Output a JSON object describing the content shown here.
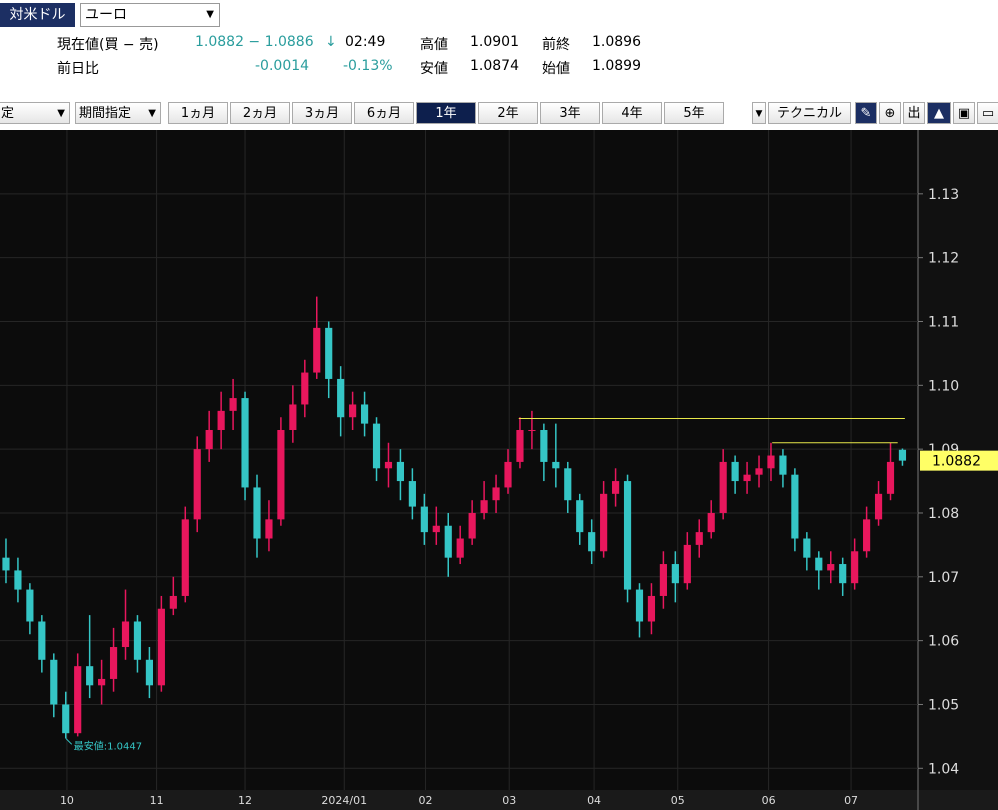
{
  "header": {
    "pair_button": "対米ドル",
    "currency_select": "ユーロ",
    "quote": {
      "label": "現在値(買 − 売)",
      "value": "1.0882 − 1.0886",
      "arrow": "↓",
      "time": "02:49",
      "high_label": "高値",
      "high": "1.0901",
      "prev_close_label": "前終",
      "prev_close": "1.0896",
      "change_label": "前日比",
      "change": "-0.0014",
      "change_pct": "-0.13%",
      "low_label": "安値",
      "low": "1.0874",
      "open_label": "始値",
      "open": "1.0899"
    }
  },
  "toolbar": {
    "bar_select": "定",
    "period_select": "期間指定",
    "periods": [
      "1ヵ月",
      "2ヵ月",
      "3ヵ月",
      "6ヵ月",
      "1年",
      "2年",
      "3年",
      "4年",
      "5年"
    ],
    "active_period": 4,
    "technical": "テクニカル",
    "export_icon": "出"
  },
  "chart_data": {
    "type": "candlestick",
    "open": [
      1.073,
      1.071,
      1.068,
      1.063,
      1.057,
      1.05,
      1.0455,
      1.056,
      1.053,
      1.054,
      1.059,
      1.063,
      1.057,
      1.053,
      1.065,
      1.067,
      1.079,
      1.09,
      1.093,
      1.096,
      1.098,
      1.084,
      1.076,
      1.079,
      1.093,
      1.097,
      1.102,
      1.109,
      1.101,
      1.095,
      1.097,
      1.094,
      1.087,
      1.088,
      1.085,
      1.081,
      1.077,
      1.078,
      1.073,
      1.076,
      1.08,
      1.082,
      1.084,
      1.088,
      1.093,
      1.093,
      1.088,
      1.087,
      1.082,
      1.077,
      1.074,
      1.083,
      1.085,
      1.068,
      1.063,
      1.067,
      1.072,
      1.069,
      1.075,
      1.077,
      1.08,
      1.088,
      1.085,
      1.086,
      1.087,
      1.089,
      1.086,
      1.076,
      1.073,
      1.071,
      1.072,
      1.069,
      1.074,
      1.079,
      1.083,
      1.0899
    ],
    "high": [
      1.076,
      1.073,
      1.069,
      1.064,
      1.058,
      1.052,
      1.058,
      1.064,
      1.057,
      1.062,
      1.068,
      1.064,
      1.059,
      1.067,
      1.07,
      1.081,
      1.092,
      1.096,
      1.099,
      1.101,
      1.099,
      1.086,
      1.082,
      1.095,
      1.1,
      1.104,
      1.1139,
      1.11,
      1.103,
      1.099,
      1.099,
      1.095,
      1.091,
      1.09,
      1.087,
      1.083,
      1.081,
      1.08,
      1.078,
      1.082,
      1.085,
      1.086,
      1.09,
      1.095,
      1.096,
      1.094,
      1.094,
      1.088,
      1.083,
      1.079,
      1.085,
      1.087,
      1.086,
      1.069,
      1.069,
      1.074,
      1.074,
      1.077,
      1.079,
      1.082,
      1.09,
      1.089,
      1.088,
      1.089,
      1.091,
      1.09,
      1.087,
      1.077,
      1.074,
      1.074,
      1.073,
      1.076,
      1.081,
      1.085,
      1.091,
      1.0901
    ],
    "low": [
      1.069,
      1.066,
      1.061,
      1.055,
      1.048,
      1.0447,
      1.045,
      1.051,
      1.05,
      1.052,
      1.057,
      1.055,
      1.051,
      1.052,
      1.064,
      1.066,
      1.077,
      1.088,
      1.09,
      1.093,
      1.082,
      1.073,
      1.074,
      1.078,
      1.091,
      1.095,
      1.101,
      1.098,
      1.092,
      1.093,
      1.092,
      1.085,
      1.084,
      1.082,
      1.079,
      1.075,
      1.075,
      1.07,
      1.072,
      1.075,
      1.079,
      1.08,
      1.083,
      1.087,
      1.09,
      1.085,
      1.084,
      1.08,
      1.075,
      1.072,
      1.073,
      1.081,
      1.066,
      1.0605,
      1.061,
      1.065,
      1.066,
      1.068,
      1.073,
      1.076,
      1.079,
      1.083,
      1.083,
      1.084,
      1.085,
      1.084,
      1.074,
      1.071,
      1.068,
      1.069,
      1.067,
      1.068,
      1.073,
      1.078,
      1.082,
      1.0874
    ],
    "close": [
      1.071,
      1.068,
      1.063,
      1.057,
      1.05,
      1.0455,
      1.056,
      1.053,
      1.054,
      1.059,
      1.063,
      1.057,
      1.053,
      1.065,
      1.067,
      1.079,
      1.09,
      1.093,
      1.096,
      1.098,
      1.084,
      1.076,
      1.079,
      1.093,
      1.097,
      1.102,
      1.109,
      1.101,
      1.095,
      1.097,
      1.094,
      1.087,
      1.088,
      1.085,
      1.081,
      1.077,
      1.078,
      1.073,
      1.076,
      1.08,
      1.082,
      1.084,
      1.088,
      1.093,
      1.093,
      1.088,
      1.087,
      1.082,
      1.077,
      1.074,
      1.083,
      1.085,
      1.068,
      1.063,
      1.067,
      1.072,
      1.069,
      1.075,
      1.077,
      1.08,
      1.088,
      1.085,
      1.086,
      1.087,
      1.089,
      1.086,
      1.076,
      1.073,
      1.071,
      1.072,
      1.069,
      1.074,
      1.079,
      1.083,
      1.088,
      1.0882
    ],
    "up_color": "#e8175d",
    "down_color": "#35c6c6",
    "xlim": [
      -0.5,
      76.3
    ],
    "xticks": [
      {
        "value": 5.1,
        "label": "10"
      },
      {
        "value": 12.6,
        "label": "11"
      },
      {
        "value": 20.0,
        "label": "12"
      },
      {
        "value": 28.3,
        "label": "2024/01"
      },
      {
        "value": 35.1,
        "label": "02"
      },
      {
        "value": 42.1,
        "label": "03"
      },
      {
        "value": 49.2,
        "label": "04"
      },
      {
        "value": 56.2,
        "label": "05"
      },
      {
        "value": 63.8,
        "label": "06"
      },
      {
        "value": 70.7,
        "label": "07"
      }
    ],
    "ylim": [
      1.0366,
      1.14
    ],
    "yticks": [
      1.04,
      1.05,
      1.06,
      1.07,
      1.08,
      1.09,
      {
        "value": 1.1,
        "label": "1.10"
      },
      1.11,
      1.12,
      1.13
    ],
    "grid": true,
    "ref_lines": [
      {
        "y": 1.0948,
        "x": [
          42.9,
          75.2
        ]
      },
      {
        "y": 1.091,
        "x": [
          64.1,
          74.6
        ]
      }
    ],
    "ref_color": "#e8e84a",
    "current_price": 1.0882,
    "low_annotation": {
      "label": "最安値:1.0447",
      "index": 5,
      "value": 1.0447
    }
  }
}
